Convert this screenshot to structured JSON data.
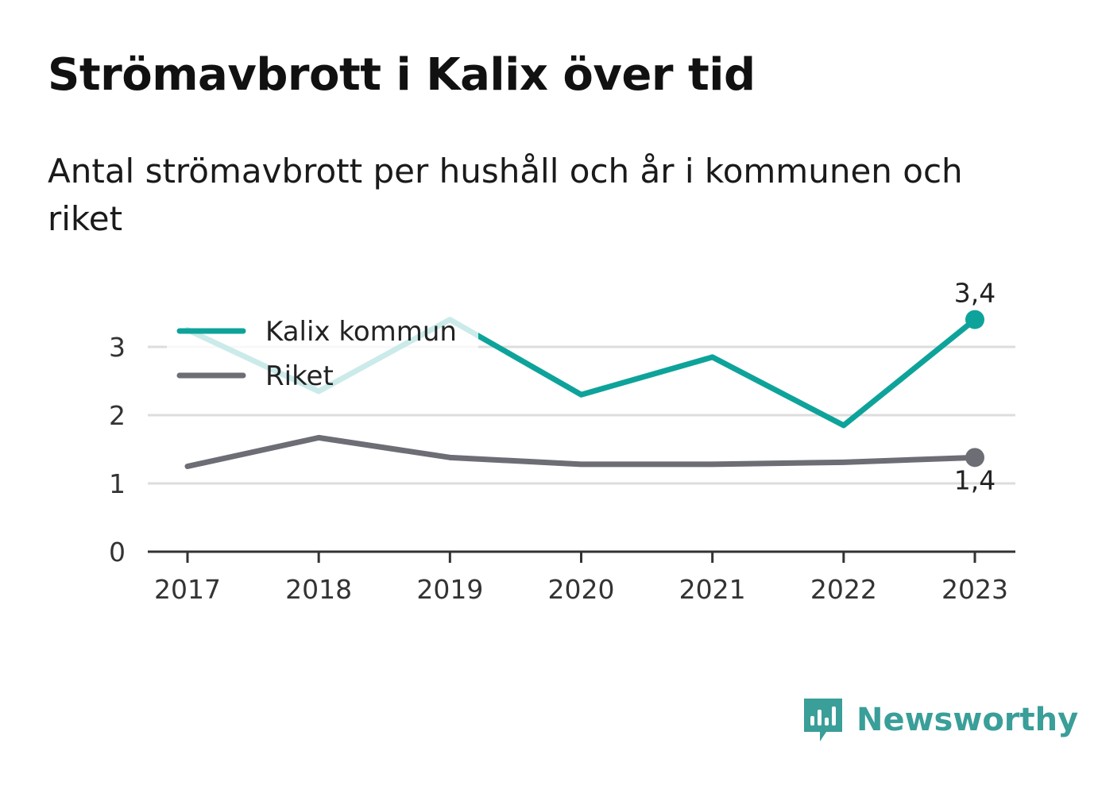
{
  "title": "Strömavbrott i Kalix över tid",
  "subtitle": "Antal strömavbrott per hushåll och år i kommunen och riket",
  "brand": {
    "name": "Newsworthy",
    "icon": "newsworthy-logo-icon",
    "color": "#3a9e99"
  },
  "chart_data": {
    "type": "line",
    "title": "Strömavbrott i Kalix över tid",
    "subtitle": "Antal strömavbrott per hushåll och år i kommunen och riket",
    "x": [
      "2017",
      "2018",
      "2019",
      "2020",
      "2021",
      "2022",
      "2023"
    ],
    "ylim": [
      0,
      3.7
    ],
    "yticks": [
      "0",
      "1",
      "2",
      "3"
    ],
    "grid": "horizontal",
    "legend_position": "top-left",
    "series": [
      {
        "name": "Kalix kommun",
        "color": "#0ea39a",
        "values": [
          3.25,
          2.35,
          3.4,
          2.3,
          2.85,
          1.85,
          3.4
        ],
        "end_label": "3,4"
      },
      {
        "name": "Riket",
        "color": "#6d6d75",
        "values": [
          1.25,
          1.67,
          1.38,
          1.28,
          1.28,
          1.31,
          1.38
        ],
        "end_label": "1,4"
      }
    ]
  }
}
